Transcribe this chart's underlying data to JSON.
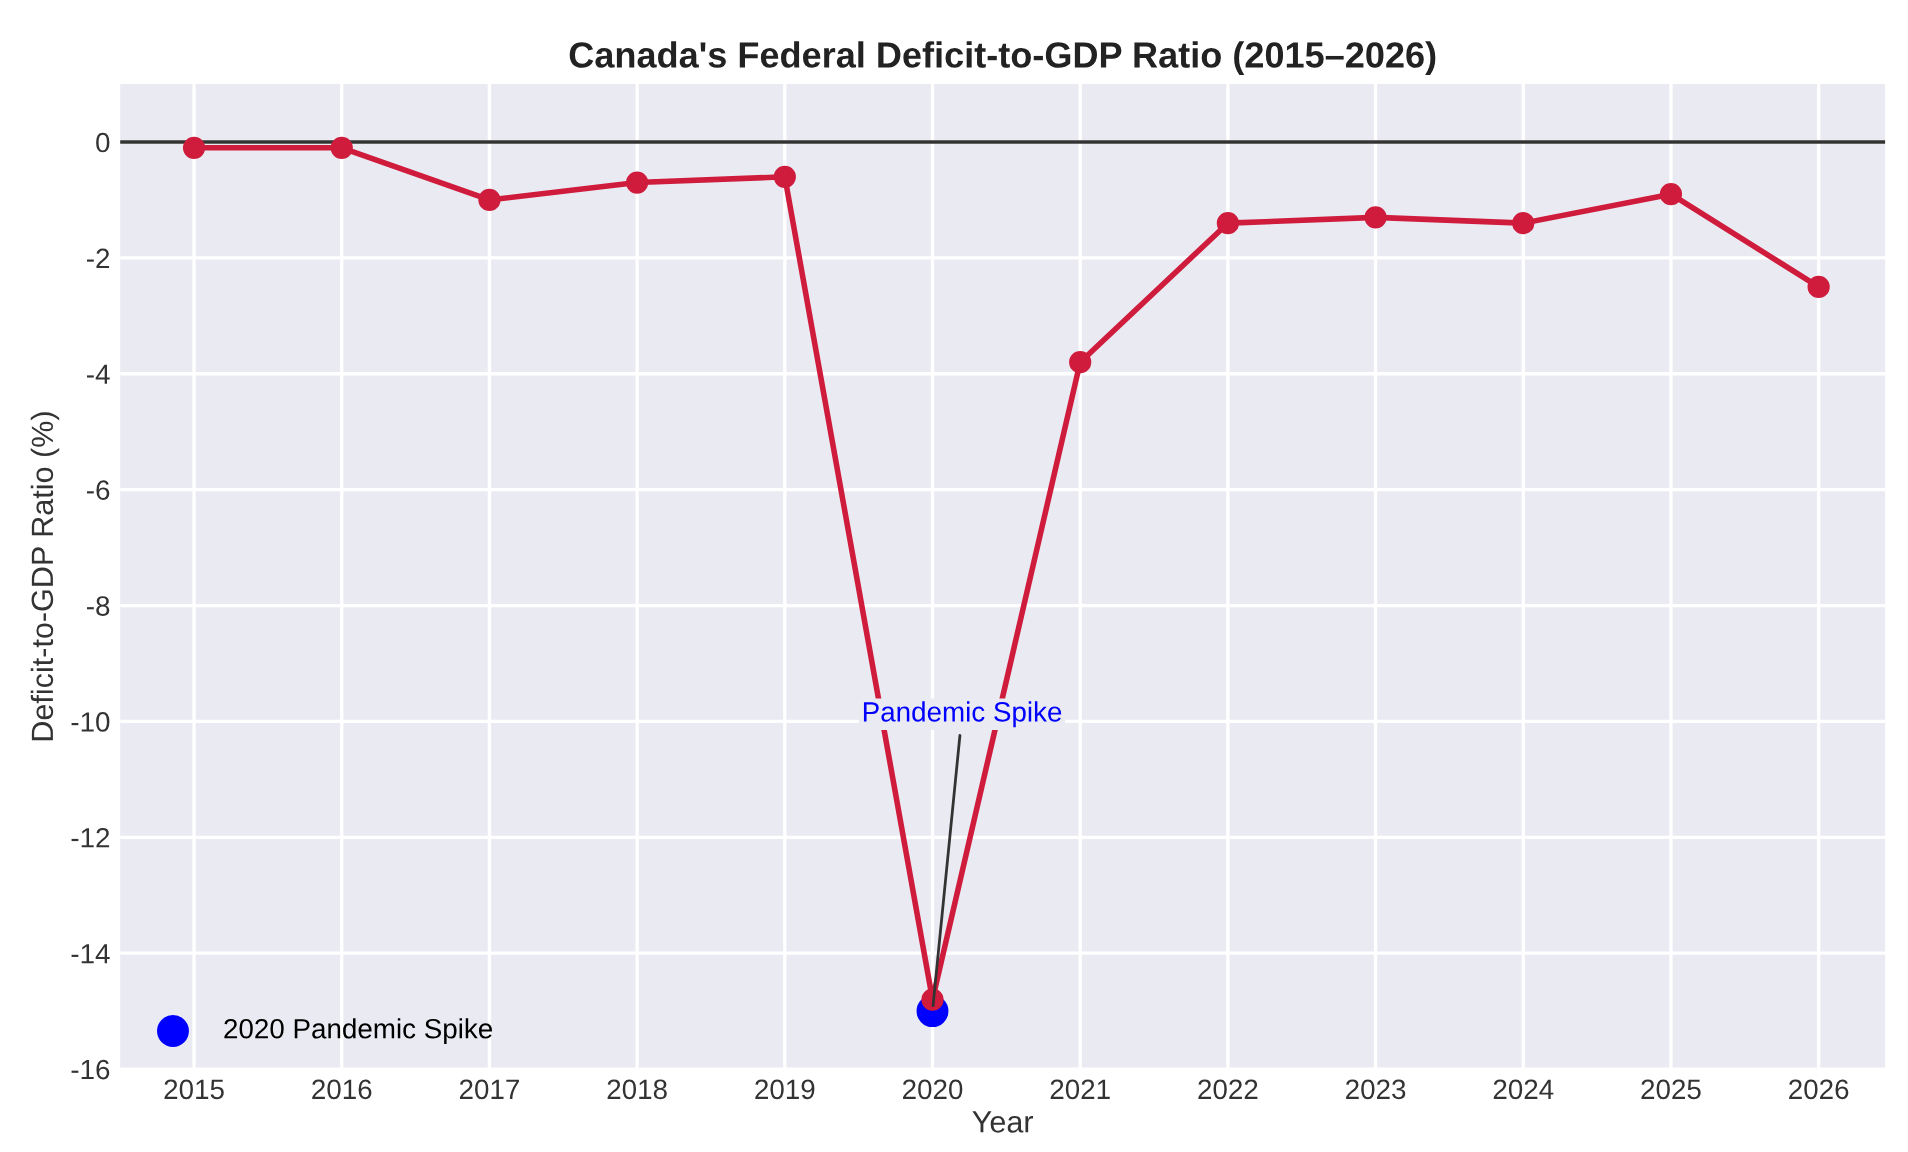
{
  "chart_data": {
    "type": "line",
    "title": "Canada's Federal Deficit-to-GDP Ratio (2015–2026)",
    "xlabel": "Year",
    "ylabel": "Deficit-to-GDP Ratio (%)",
    "x": [
      2015,
      2016,
      2017,
      2018,
      2019,
      2020,
      2021,
      2022,
      2023,
      2024,
      2025,
      2026
    ],
    "series": [
      {
        "color": "#d01c3c",
        "values": [
          -0.1,
          -0.1,
          -1.0,
          -0.7,
          -0.6,
          -14.8,
          -3.8,
          -1.4,
          -1.3,
          -1.4,
          -0.9,
          -2.5
        ]
      },
      {
        "type": "scatter",
        "name": "2020 Pandemic Spike",
        "color": "#0000ff",
        "x": [
          2020
        ],
        "values": [
          -15.0
        ]
      }
    ],
    "xlim": [
      2014.5,
      2026.45
    ],
    "xticks": [
      2015,
      2016,
      2017,
      2018,
      2019,
      2020,
      2021,
      2022,
      2023,
      2024,
      2025,
      2026
    ],
    "ylim": [
      -16,
      1
    ],
    "yticks": [
      -16,
      -14,
      -12,
      -10,
      -8,
      -6,
      -4,
      -2,
      0
    ],
    "ref_lines": [
      {
        "axis": "y",
        "value": 0,
        "color": "#333333"
      }
    ],
    "annotations": [
      {
        "text": "Pandemic Spike",
        "x": 2020,
        "y": -15.0
      }
    ],
    "grid": true,
    "legend": "bottom left",
    "marker": "circle",
    "line_style": "solid"
  }
}
